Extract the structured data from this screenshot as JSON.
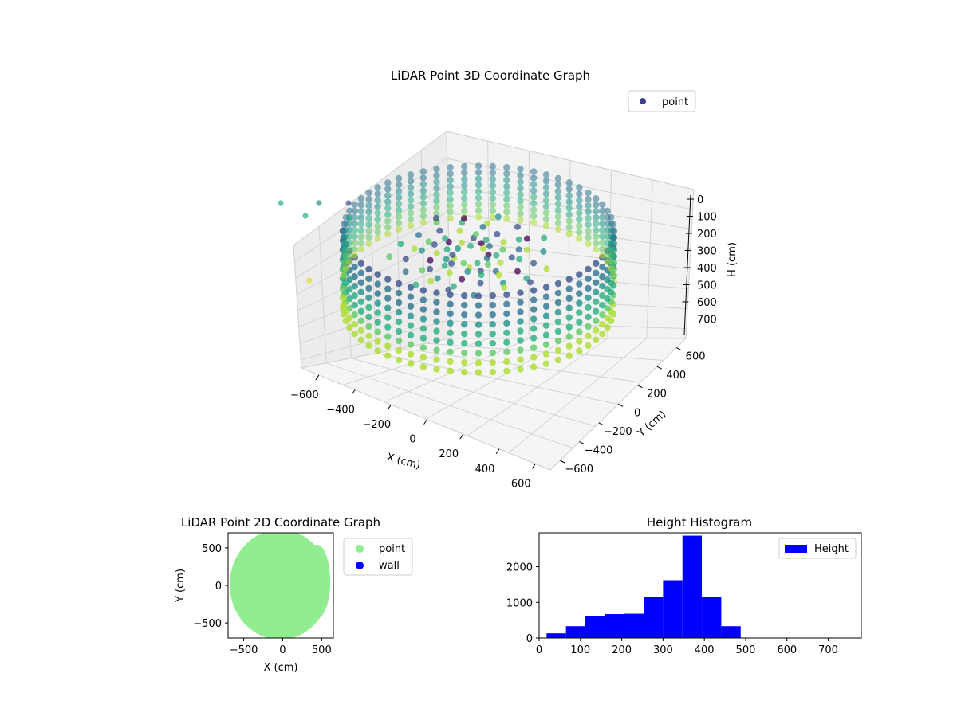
{
  "chart_data": [
    {
      "type": "scatter",
      "projection": "3d",
      "title": "LiDAR Point 3D Coordinate Graph",
      "xlabel": "X (cm)",
      "ylabel": "Y (cm)",
      "zlabel": "H (cm)",
      "xlim": [
        -700,
        700
      ],
      "ylim": [
        -700,
        700
      ],
      "zlim": [
        0,
        750
      ],
      "z_inverted": true,
      "x_ticks": [
        "−600",
        "−400",
        "−200",
        "0",
        "200",
        "400",
        "600"
      ],
      "y_ticks": [
        "600",
        "400",
        "200",
        "0",
        "−200",
        "−400",
        "−600"
      ],
      "z_ticks": [
        "0",
        "100",
        "200",
        "300",
        "400",
        "500",
        "600",
        "700"
      ],
      "colormap": "viridis",
      "legend": [
        {
          "label": "point",
          "color": "#3b3f8c"
        }
      ],
      "legend_position": "top-right",
      "grid": true
    },
    {
      "type": "scatter",
      "title": "LiDAR Point 2D Coordinate Graph",
      "xlabel": "X (cm)",
      "ylabel": "Y (cm)",
      "xlim": [
        -700,
        650
      ],
      "ylim": [
        -700,
        700
      ],
      "x_ticks": [
        "−500",
        "0",
        "500"
      ],
      "y_ticks": [
        "500",
        "0",
        "−500"
      ],
      "series": [
        {
          "name": "point",
          "color": "#90ee90"
        },
        {
          "name": "wall",
          "color": "#0000ff"
        }
      ],
      "legend_position": "outside-right"
    },
    {
      "type": "bar",
      "title": "Height Histogram",
      "xlim": [
        0,
        780
      ],
      "ylim": [
        0,
        2950
      ],
      "x_ticks": [
        "0",
        "100",
        "200",
        "300",
        "400",
        "500",
        "600",
        "700"
      ],
      "y_ticks": [
        "0",
        "1000",
        "2000"
      ],
      "bin_width": 47,
      "bins": [
        {
          "start": 18,
          "count": 130
        },
        {
          "start": 65,
          "count": 330
        },
        {
          "start": 112,
          "count": 620
        },
        {
          "start": 159,
          "count": 670
        },
        {
          "start": 206,
          "count": 680
        },
        {
          "start": 253,
          "count": 1150
        },
        {
          "start": 300,
          "count": 1620
        },
        {
          "start": 347,
          "count": 2870
        },
        {
          "start": 394,
          "count": 1150
        },
        {
          "start": 441,
          "count": 330
        }
      ],
      "series": [
        {
          "name": "Height",
          "color": "#0000ff"
        }
      ],
      "legend_position": "top-right"
    }
  ]
}
